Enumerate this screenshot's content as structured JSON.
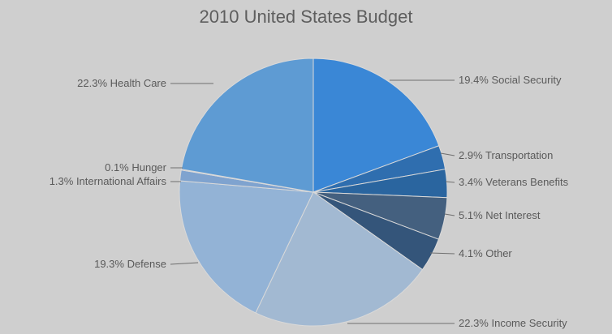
{
  "chart_data": {
    "type": "pie",
    "title": "2010 United States Budget",
    "start_angle_deg": 0,
    "direction": "clockwise",
    "slices": [
      {
        "label": "19.4% Social Security",
        "value": 19.4,
        "color": "#3a87d6"
      },
      {
        "label": "2.9% Transportation",
        "value": 2.9,
        "color": "#2f6eaf"
      },
      {
        "label": "3.4% Veterans Benefits",
        "value": 3.4,
        "color": "#2a659f"
      },
      {
        "label": "5.1% Net Interest",
        "value": 5.1,
        "color": "#44607f"
      },
      {
        "label": "4.1% Other",
        "value": 4.1,
        "color": "#34557a"
      },
      {
        "label": "22.3% Income Security",
        "value": 22.3,
        "color": "#a2b9d2"
      },
      {
        "label": "19.3% Defense",
        "value": 19.3,
        "color": "#93b3d6"
      },
      {
        "label": "1.3% International Affairs",
        "value": 1.3,
        "color": "#7fa3cf"
      },
      {
        "label": "0.1% Hunger",
        "value": 0.1,
        "color": "#b83a3a"
      },
      {
        "label": "22.3% Health Care",
        "value": 22.3,
        "color": "#5e9bd3"
      }
    ]
  }
}
